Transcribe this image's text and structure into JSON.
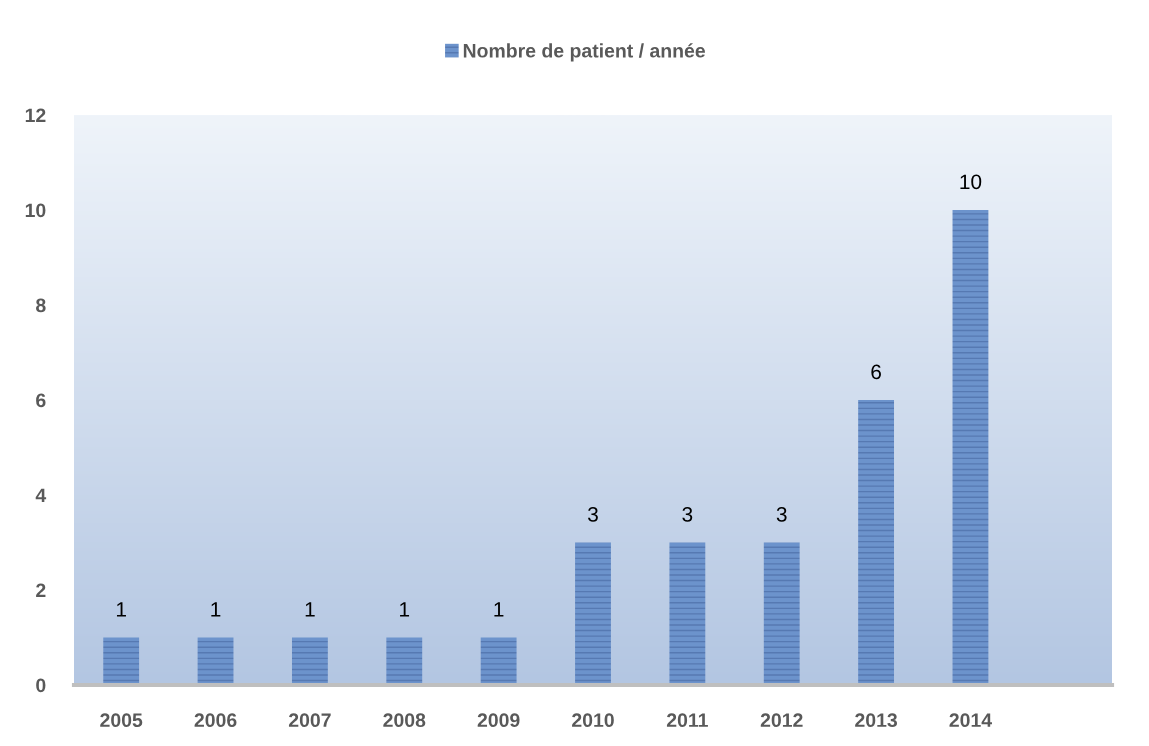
{
  "chart_data": {
    "type": "bar",
    "categories": [
      "2005",
      "2006",
      "2007",
      "2008",
      "2009",
      "2010",
      "2011",
      "2012",
      "2013",
      "2014",
      null
    ],
    "series": [
      {
        "name": "Nombre de patient / année",
        "color": "#6c93cc",
        "values": [
          1,
          1,
          1,
          1,
          1,
          3,
          3,
          3,
          6,
          10,
          null
        ]
      }
    ],
    "ylim": [
      0,
      12
    ],
    "yticks": [
      0,
      2,
      4,
      6,
      8,
      10,
      12
    ],
    "data_labels": true,
    "legend": "top",
    "grid": false
  }
}
